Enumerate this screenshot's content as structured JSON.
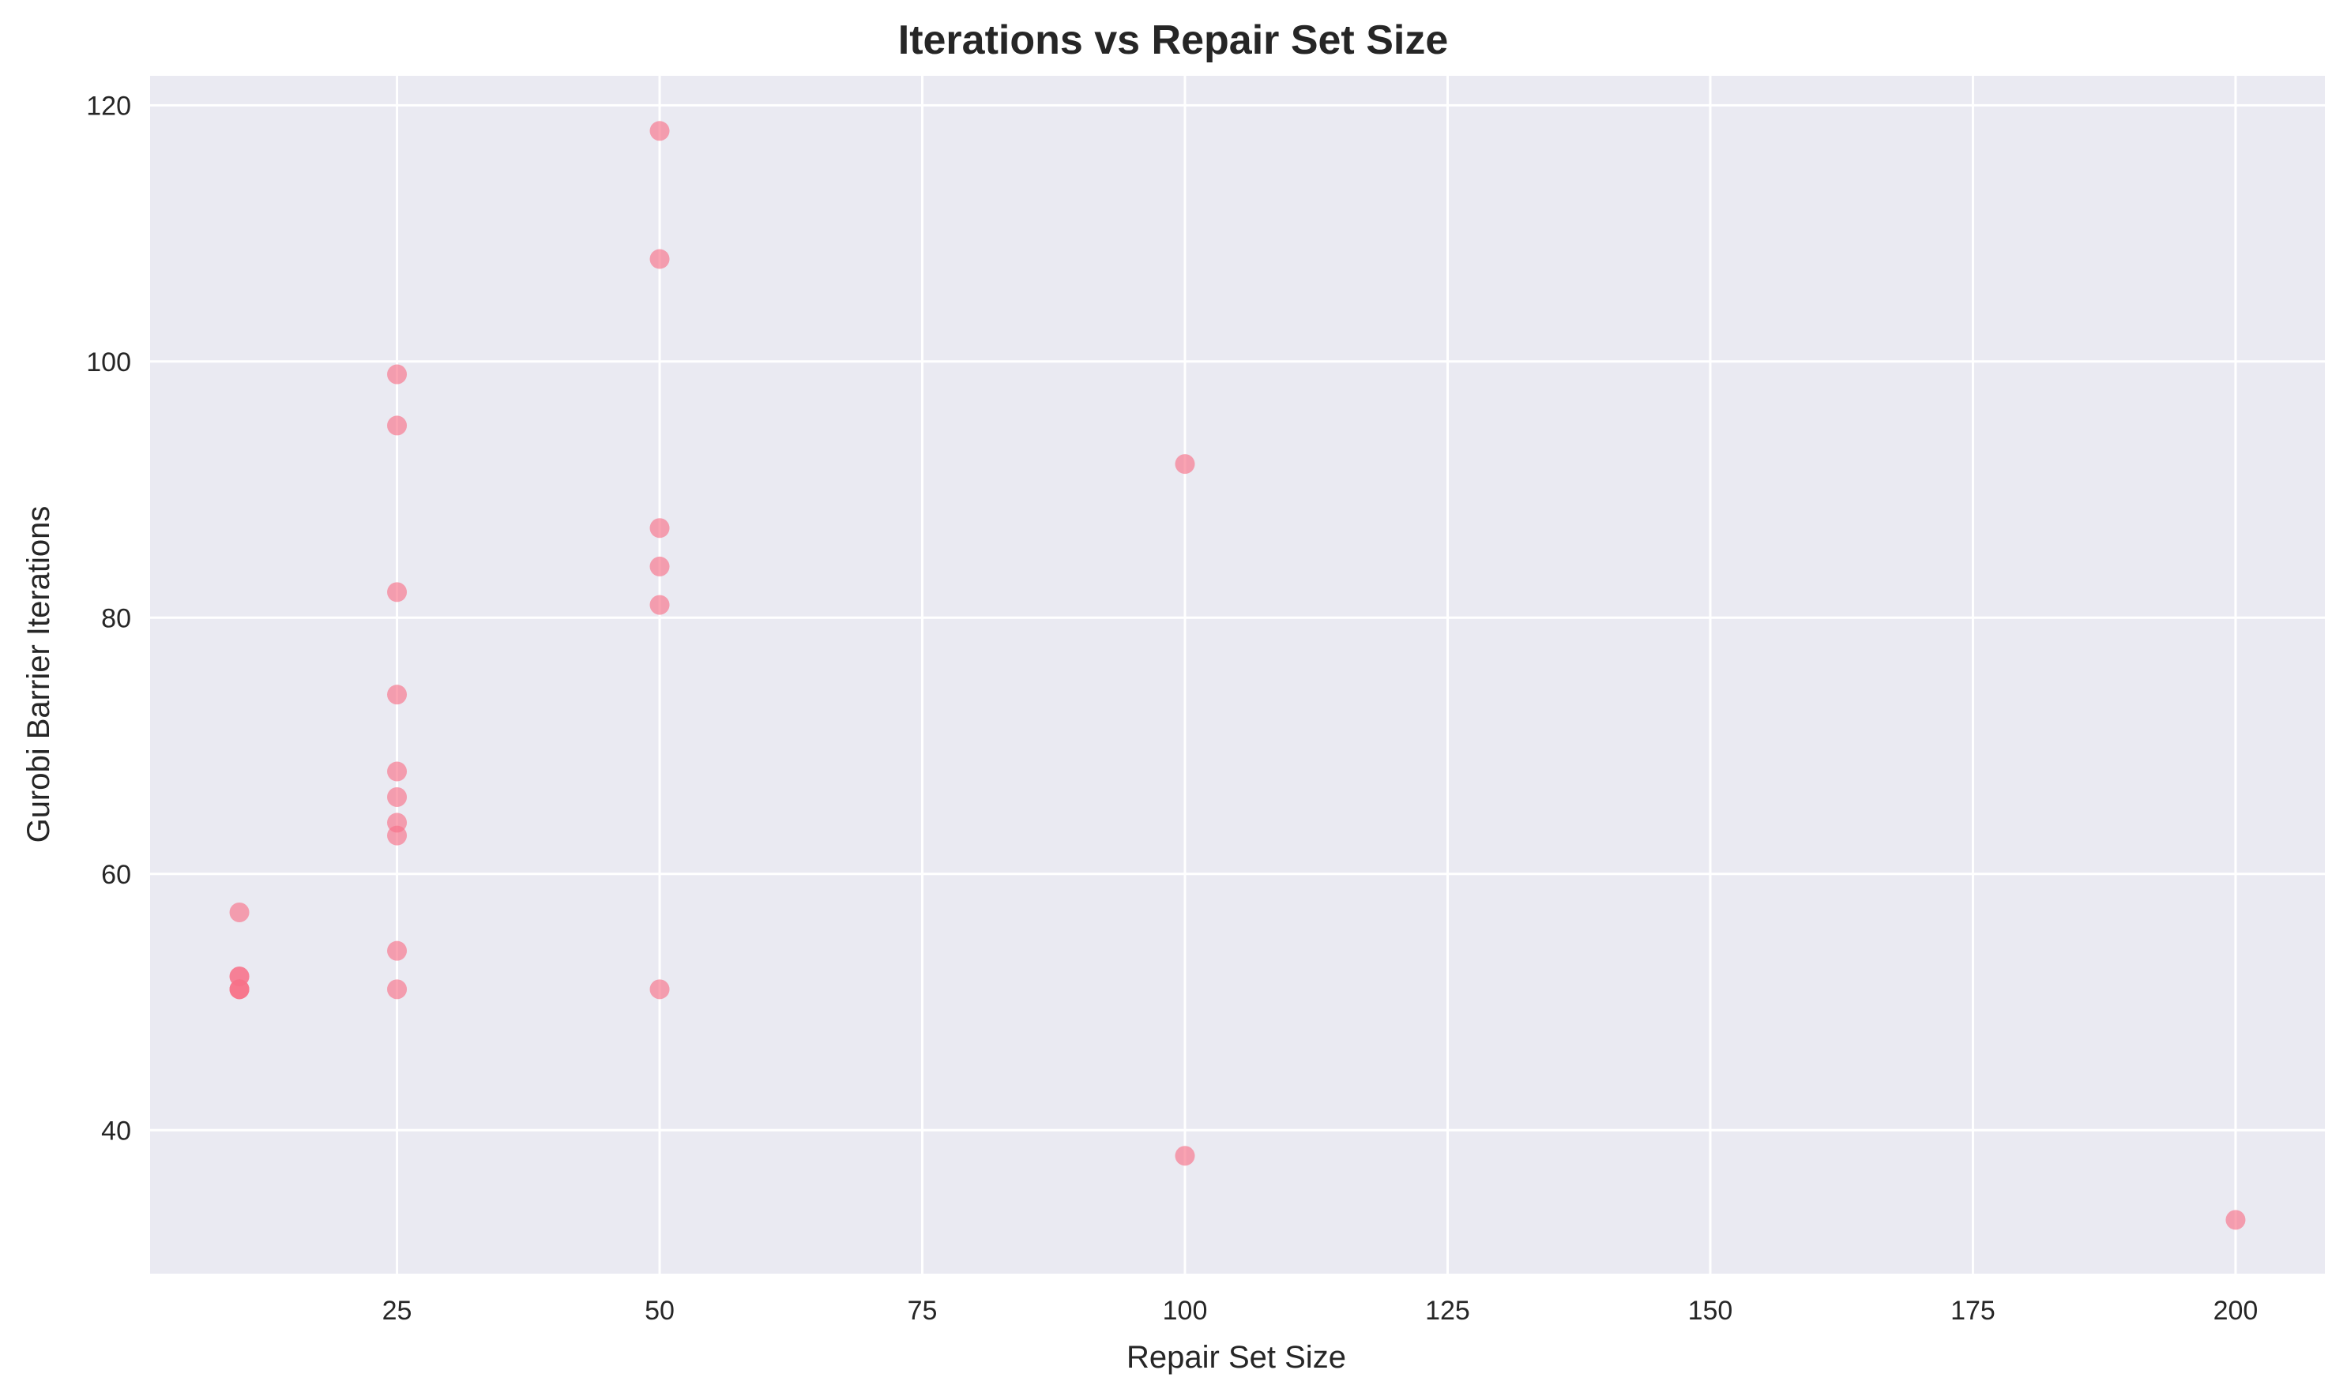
{
  "chart_data": {
    "type": "scatter",
    "title": "Iterations vs Repair Set Size",
    "xlabel": "Repair Set Size",
    "ylabel": "Gurobi Barrier Iterations",
    "xlim": [
      1.5,
      208.5
    ],
    "ylim": [
      28.8,
      122.3
    ],
    "xticks": [
      25,
      50,
      75,
      100,
      125,
      150,
      175,
      200
    ],
    "yticks": [
      40,
      60,
      80,
      100,
      120
    ],
    "grid": true,
    "legend": "none",
    "colors": {
      "point": "#f77189",
      "background": "#eaeaf2",
      "grid": "#ffffff"
    },
    "point_alpha": 0.65,
    "series": [
      {
        "points": [
          {
            "x": 10,
            "y": 57
          },
          {
            "x": 10,
            "y": 52
          },
          {
            "x": 10,
            "y": 52
          },
          {
            "x": 10,
            "y": 51
          },
          {
            "x": 10,
            "y": 51
          },
          {
            "x": 10,
            "y": 51
          },
          {
            "x": 25,
            "y": 99
          },
          {
            "x": 25,
            "y": 95
          },
          {
            "x": 25,
            "y": 82
          },
          {
            "x": 25,
            "y": 74
          },
          {
            "x": 25,
            "y": 68
          },
          {
            "x": 25,
            "y": 66
          },
          {
            "x": 25,
            "y": 64
          },
          {
            "x": 25,
            "y": 63
          },
          {
            "x": 25,
            "y": 54
          },
          {
            "x": 25,
            "y": 51
          },
          {
            "x": 50,
            "y": 118
          },
          {
            "x": 50,
            "y": 108
          },
          {
            "x": 50,
            "y": 87
          },
          {
            "x": 50,
            "y": 84
          },
          {
            "x": 50,
            "y": 81
          },
          {
            "x": 50,
            "y": 51
          },
          {
            "x": 100,
            "y": 92
          },
          {
            "x": 100,
            "y": 38
          },
          {
            "x": 200,
            "y": 33
          }
        ]
      }
    ]
  }
}
